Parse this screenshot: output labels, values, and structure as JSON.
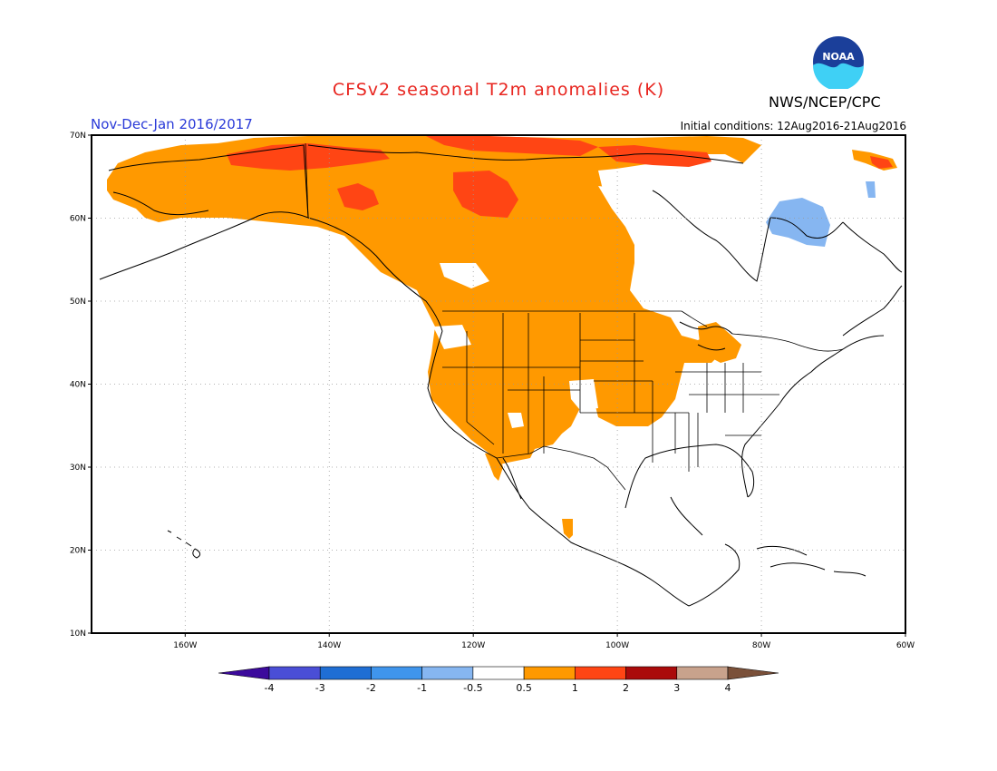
{
  "header": {
    "title": "CFSv2 seasonal T2m anomalies (K)",
    "period": "Nov-Dec-Jan 2016/2017",
    "initial_conditions": "Initial conditions: 12Aug2016-21Aug2016",
    "agency": "NWS/NCEP/CPC",
    "logo_text": "NOAA"
  },
  "colors": {
    "title": "#e8251f",
    "period": "#2a3ad8",
    "warm_05_1": "#ff9900",
    "warm_1_2": "#ff4514",
    "warm_2_3": "#aa0a0a",
    "cool_05_1": "#86b6f1",
    "frame": "#000000"
  },
  "map": {
    "lon_range": [
      -173,
      -60
    ],
    "lat_range": [
      10,
      70
    ],
    "lat_labels": [
      "70N",
      "60N",
      "50N",
      "40N",
      "30N",
      "20N",
      "10N"
    ],
    "lat_values": [
      70,
      60,
      50,
      40,
      30,
      20,
      10
    ],
    "lon_labels": [
      "160W",
      "140W",
      "120W",
      "100W",
      "80W",
      "60W"
    ],
    "lon_values": [
      -160,
      -140,
      -120,
      -100,
      -80,
      -60
    ]
  },
  "colorbar": {
    "colors": [
      "#3c0a9c",
      "#4a4ed6",
      "#1f6ed4",
      "#3f95ec",
      "#86b6f1",
      "#ffffff",
      "#ff9900",
      "#ff4514",
      "#aa0a0a",
      "#c8a28c",
      "#7a5039"
    ],
    "labels": [
      "-4",
      "-3",
      "-2",
      "-1",
      "-0.5",
      "0.5",
      "1",
      "2",
      "3",
      "4"
    ]
  }
}
